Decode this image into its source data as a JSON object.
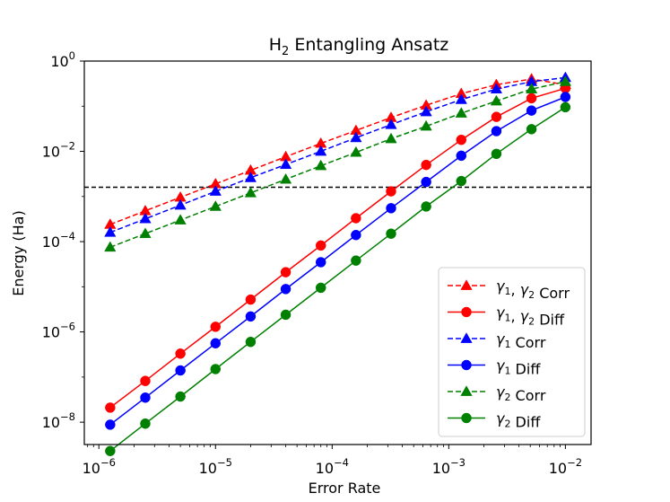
{
  "chart_data": {
    "type": "line",
    "title": "H",
    "title_sub": "2",
    "title_rest": " Entangling Ansatz",
    "xlabel": "Error Rate",
    "ylabel": "Energy (Ha)",
    "xscale": "log",
    "yscale": "log",
    "xlim": [
      7.5e-07,
      0.0166
    ],
    "ylim": [
      3.2e-09,
      1.0
    ],
    "xticks": [
      {
        "value": 1e-06,
        "base": "10",
        "exp": "−6"
      },
      {
        "value": 1e-05,
        "base": "10",
        "exp": "−5"
      },
      {
        "value": 0.0001,
        "base": "10",
        "exp": "−4"
      },
      {
        "value": 0.001,
        "base": "10",
        "exp": "−3"
      },
      {
        "value": 0.01,
        "base": "10",
        "exp": "−2"
      }
    ],
    "yticks": [
      {
        "value": 1e-08,
        "base": "10",
        "exp": "−8"
      },
      {
        "value": 1e-06,
        "base": "10",
        "exp": "−6"
      },
      {
        "value": 0.0001,
        "base": "10",
        "exp": "−4"
      },
      {
        "value": 0.01,
        "base": "10",
        "exp": "−2"
      },
      {
        "value": 1,
        "base": "10",
        "exp": "0"
      }
    ],
    "hline": {
      "y": 0.0016,
      "color": "#000000",
      "style": "dashed"
    },
    "x": [
      1.25e-06,
      2.5e-06,
      5e-06,
      1e-05,
      2e-05,
      4e-05,
      8e-05,
      0.00016,
      0.00032,
      0.00064,
      0.00128,
      0.00256,
      0.00512,
      0.01
    ],
    "series": [
      {
        "name": "γ1, γ2 Corr",
        "label": [
          {
            "t": "γ",
            "i": true
          },
          {
            "t": "1",
            "sub": true
          },
          {
            "t": ", "
          },
          {
            "t": "γ",
            "i": true
          },
          {
            "t": "2",
            "sub": true
          },
          {
            "t": " Corr"
          }
        ],
        "color": "#ff0000",
        "dashed": true,
        "marker": "triangle",
        "values": [
          0.00024,
          0.00048,
          0.00096,
          0.0019,
          0.0038,
          0.0076,
          0.015,
          0.029,
          0.056,
          0.105,
          0.19,
          0.3,
          0.4,
          0.3
        ]
      },
      {
        "name": "γ1, γ2 Diff",
        "label": [
          {
            "t": "γ",
            "i": true
          },
          {
            "t": "1",
            "sub": true
          },
          {
            "t": ",  "
          },
          {
            "t": "γ",
            "i": true
          },
          {
            "t": "2",
            "sub": true
          },
          {
            "t": " Diff"
          }
        ],
        "color": "#ff0000",
        "dashed": false,
        "marker": "circle",
        "values": [
          2.1e-08,
          8.2e-08,
          3.3e-07,
          1.3e-06,
          5.2e-06,
          2.1e-05,
          8.2e-05,
          0.00033,
          0.0013,
          0.005,
          0.018,
          0.058,
          0.15,
          0.25
        ]
      },
      {
        "name": "γ1 Corr",
        "label": [
          {
            "t": "γ",
            "i": true
          },
          {
            "t": "1",
            "sub": true
          },
          {
            "t": " Corr"
          }
        ],
        "color": "#0000ff",
        "dashed": true,
        "marker": "triangle",
        "values": [
          0.00016,
          0.00032,
          0.00064,
          0.0013,
          0.0026,
          0.0051,
          0.01,
          0.02,
          0.039,
          0.075,
          0.14,
          0.24,
          0.35,
          0.43
        ]
      },
      {
        "name": "γ1 Diff",
        "label": [
          {
            "t": "γ",
            "i": true
          },
          {
            "t": "1",
            "sub": true
          },
          {
            "t": " Diff"
          }
        ],
        "color": "#0000ff",
        "dashed": false,
        "marker": "circle",
        "values": [
          8.8e-09,
          3.5e-08,
          1.4e-07,
          5.6e-07,
          2.2e-06,
          8.9e-06,
          3.5e-05,
          0.00014,
          0.00055,
          0.0021,
          0.008,
          0.028,
          0.08,
          0.16
        ]
      },
      {
        "name": "γ2 Corr",
        "label": [
          {
            "t": "γ",
            "i": true
          },
          {
            "t": "2",
            "sub": true
          },
          {
            "t": " Corr"
          }
        ],
        "color": "#008000",
        "dashed": true,
        "marker": "triangle",
        "values": [
          7.5e-05,
          0.00015,
          0.0003,
          0.0006,
          0.0012,
          0.0024,
          0.0048,
          0.0095,
          0.019,
          0.036,
          0.07,
          0.13,
          0.24,
          0.35
        ]
      },
      {
        "name": "γ2 Diff",
        "label": [
          {
            "t": "γ",
            "i": true
          },
          {
            "t": "2",
            "sub": true
          },
          {
            "t": " Diff"
          }
        ],
        "color": "#008000",
        "dashed": false,
        "marker": "circle",
        "values": [
          2.3e-09,
          9.3e-09,
          3.7e-08,
          1.5e-07,
          6e-07,
          2.4e-06,
          9.5e-06,
          3.8e-05,
          0.00015,
          0.0006,
          0.0022,
          0.0088,
          0.031,
          0.095
        ]
      }
    ],
    "legend_position": "lower-right"
  }
}
